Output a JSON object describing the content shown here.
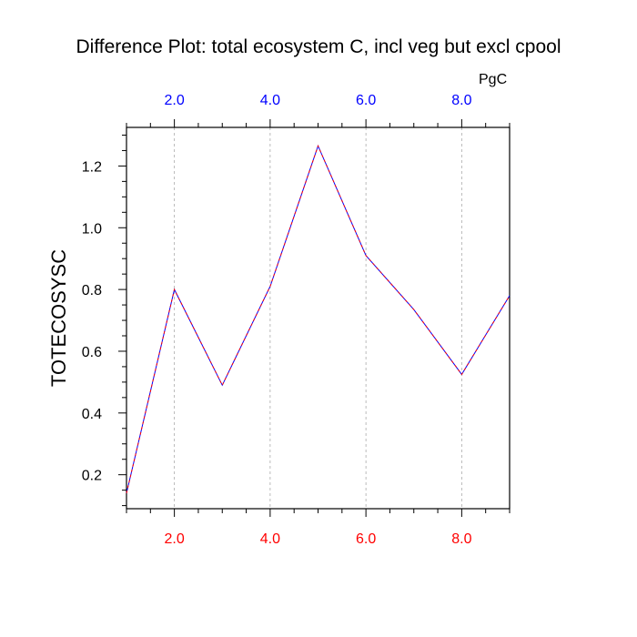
{
  "chart_data": {
    "type": "line",
    "title": "Difference Plot: total ecosystem C, incl veg but excl cpool",
    "units": "PgC",
    "ylabel": "TOTECOSYSC",
    "xlabel": "",
    "xlim": [
      1,
      9
    ],
    "ylim": [
      0.09,
      1.325
    ],
    "x_ticks": [
      "2.0",
      "4.0",
      "6.0",
      "8.0"
    ],
    "x_tick_values": [
      2,
      4,
      6,
      8
    ],
    "y_ticks": [
      "0.2",
      "0.4",
      "0.6",
      "0.8",
      "1.0",
      "1.2"
    ],
    "y_tick_values": [
      0.2,
      0.4,
      0.6,
      0.8,
      1.0,
      1.2
    ],
    "x_minor_step": 0.5,
    "y_minor_step": 0.05,
    "x": [
      1,
      2,
      3,
      4,
      5,
      6,
      7,
      8,
      9
    ],
    "series": [
      {
        "values": [
          0.14,
          0.8,
          0.49,
          0.81,
          1.265,
          0.91,
          0.735,
          0.525,
          0.78
        ],
        "color": "#0000ff"
      },
      {
        "values": [
          0.14,
          0.8,
          0.49,
          0.81,
          1.265,
          0.91,
          0.735,
          0.525,
          0.78
        ],
        "color": "#ff0000",
        "dashed": true
      }
    ],
    "grid": "vertical-dashed",
    "top_axis_color": "#0000ff",
    "bottom_axis_color": "#ff0000",
    "gridline_color": "#aaaaaa"
  }
}
